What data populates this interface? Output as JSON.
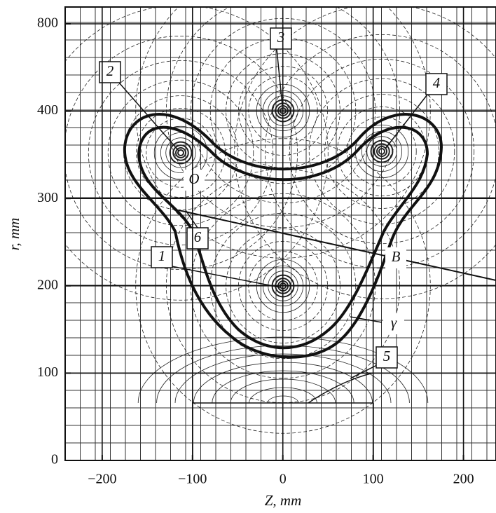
{
  "chart_data": {
    "type": "field-map",
    "xlabel": "Z, mm",
    "ylabel": "r, mm",
    "xlim": [
      -241,
      236
    ],
    "xticks": [
      {
        "value": -200,
        "label": "−200"
      },
      {
        "value": -100,
        "label": "−100"
      },
      0,
      100,
      200
    ],
    "yticks": [
      0,
      100,
      200,
      300,
      400,
      800
    ],
    "y_ticks_evenly_spaced": true,
    "grid": true,
    "annotations": [
      "1",
      "2",
      "3",
      "4",
      "5",
      "6",
      "O",
      "B",
      "γ"
    ]
  }
}
